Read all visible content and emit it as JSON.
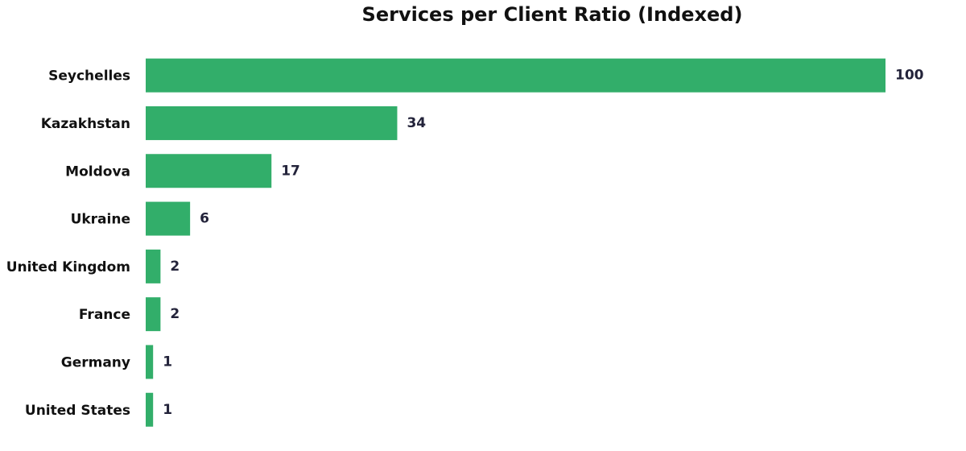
{
  "chart_data": {
    "type": "barh",
    "title": "Services per Client Ratio (Indexed)",
    "categories": [
      "Seychelles",
      "Kazakhstan",
      "Moldova",
      "Ukraine",
      "United Kingdom",
      "France",
      "Germany",
      "United States"
    ],
    "values": [
      100,
      34,
      17,
      6,
      2,
      2,
      1,
      1
    ],
    "color": "#32ae6a",
    "xlim": [
      0,
      100
    ]
  }
}
